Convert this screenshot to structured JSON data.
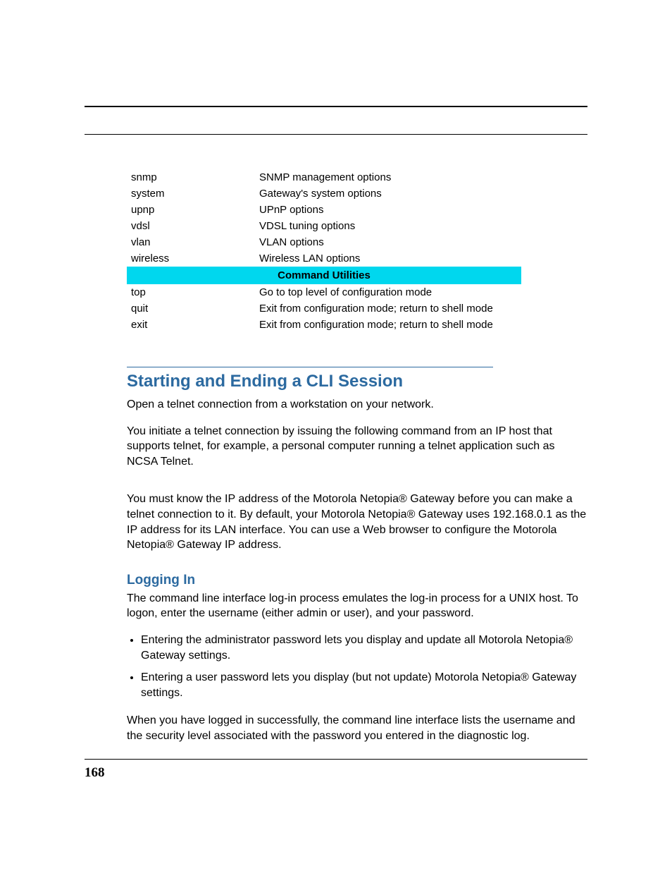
{
  "table": {
    "rows1": [
      {
        "cmd": "snmp",
        "desc": "SNMP management options"
      },
      {
        "cmd": "system",
        "desc": "Gateway's system options"
      },
      {
        "cmd": "upnp",
        "desc": "UPnP options"
      },
      {
        "cmd": "vdsl",
        "desc": "VDSL tuning options"
      },
      {
        "cmd": "vlan",
        "desc": "VLAN options"
      },
      {
        "cmd": "wireless",
        "desc": "Wireless LAN options"
      }
    ],
    "section_header": "Command Utilities",
    "rows2": [
      {
        "cmd": "top",
        "desc": "Go to top level of configuration mode"
      },
      {
        "cmd": "quit",
        "desc": "Exit from configuration mode; return to shell mode"
      },
      {
        "cmd": "exit",
        "desc": "Exit from configuration mode; return to shell mode"
      }
    ],
    "header_bg": "#00d7ee"
  },
  "section": {
    "title": "Starting and Ending a CLI Session",
    "p1": "Open a telnet connection from a workstation on your network.",
    "p2": "You initiate a telnet connection by issuing the following command from an IP host that supports telnet, for example, a personal computer running a telnet application such as NCSA Telnet.",
    "p3": "You must know the IP address of the Motorola Netopia® Gateway before you can make a telnet connection to it. By default, your Motorola Netopia® Gateway uses 192.168.0.1 as the IP address for its LAN interface. You can use a Web browser to configure the Motorola Netopia® Gateway IP address."
  },
  "subsection": {
    "title": "Logging In",
    "intro": "The command line interface log-in process emulates the log-in process for a UNIX host. To logon, enter the username (either admin or user), and your password.",
    "bullets": [
      "Entering the administrator password lets you display and update all Motorola Netopia® Gateway settings.",
      "Entering a user password lets you display (but not update) Motorola Netopia® Gateway settings."
    ],
    "closing": "When you have logged in successfully, the command line interface lists the username and the security level associated with the password you entered in the diagnostic log."
  },
  "page_number": "168",
  "colors": {
    "heading": "#2c6aa0",
    "text": "#000000",
    "bg": "#ffffff"
  },
  "fonts": {
    "body_size": 16,
    "h1_size": 24,
    "h2_size": 19
  }
}
